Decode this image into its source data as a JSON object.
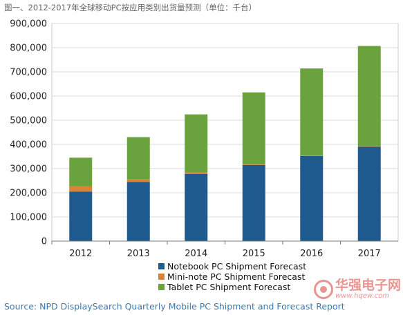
{
  "title": "图一、2012-2017年全球移动PC按应用类别出货量预测（单位：千台）",
  "chart_data": {
    "type": "bar",
    "stacked": true,
    "categories": [
      "2012",
      "2013",
      "2014",
      "2015",
      "2016",
      "2017"
    ],
    "series": [
      {
        "name": "Notebook PC Shipment Forecast",
        "color": "#1f5a8e",
        "values": [
          205000,
          245000,
          278000,
          315000,
          352000,
          390000
        ]
      },
      {
        "name": "Mini-note PC Shipment Forecast",
        "color": "#d6843a",
        "values": [
          22000,
          12000,
          6000,
          3000,
          2000,
          2000
        ]
      },
      {
        "name": "Tablet PC Shipment Forecast",
        "color": "#6aa33e",
        "values": [
          118000,
          173000,
          240000,
          297000,
          360000,
          415000
        ]
      }
    ],
    "yticks": [
      "0",
      "100,000",
      "200,000",
      "300,000",
      "400,000",
      "500,000",
      "600,000",
      "700,000",
      "800,000",
      "900,000"
    ],
    "ylim": [
      0,
      900000
    ],
    "grid": true,
    "legend_position": "bottom"
  },
  "source": "Source: NPD DisplaySearch Quarterly Mobile PC Shipment and Forecast Report",
  "watermark": {
    "text": "华强电子网",
    "url": "www.hqew.com"
  }
}
